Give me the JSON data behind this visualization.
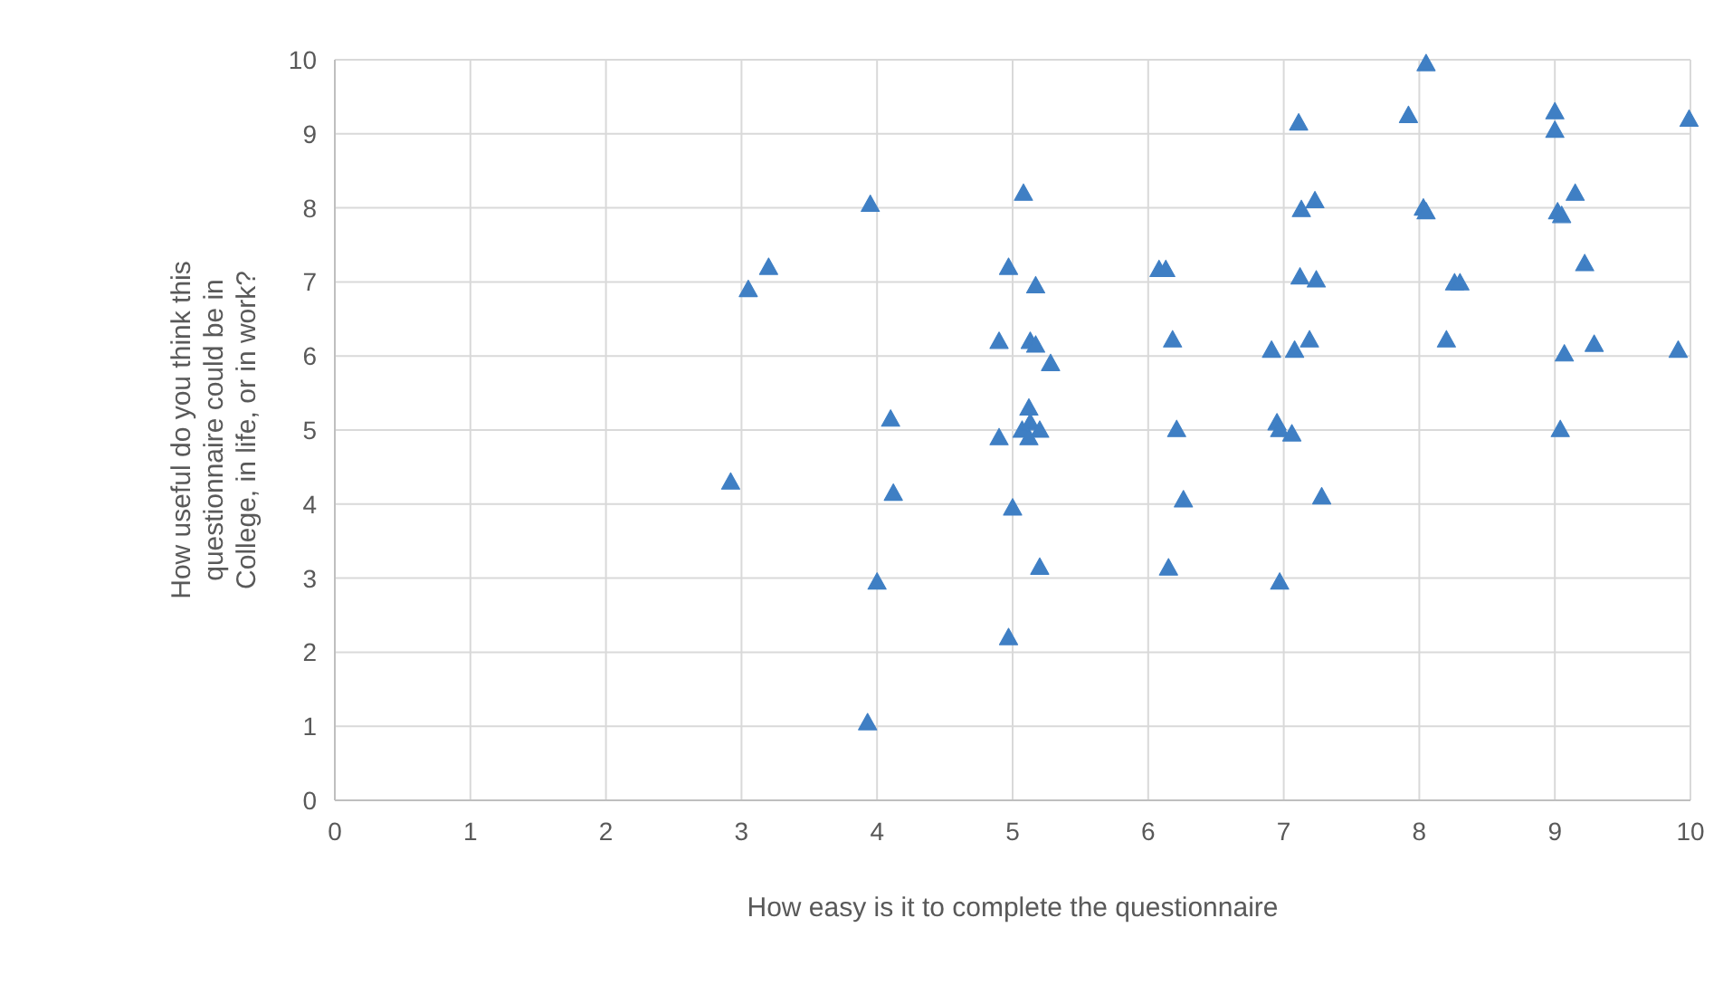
{
  "chart_data": {
    "type": "scatter",
    "xlabel": "How easy is it to complete the questionnaire",
    "ylabel": "How useful do you think this questionnaire could be in College, in life, or in work?",
    "xlim": [
      0,
      10
    ],
    "ylim": [
      0,
      10
    ],
    "xticks": [
      0,
      1,
      2,
      3,
      4,
      5,
      6,
      7,
      8,
      9,
      10
    ],
    "yticks": [
      0,
      1,
      2,
      3,
      4,
      5,
      6,
      7,
      8,
      9,
      10
    ],
    "grid": true,
    "marker": "triangle",
    "series": [
      {
        "color": "#3f7fc4",
        "x": [
          2.92,
          3.05,
          3.2,
          3.95,
          4.0,
          4.1,
          4.12,
          3.93,
          5.08,
          4.97,
          5.17,
          4.9,
          5.13,
          5.17,
          5.28,
          5.12,
          4.9,
          5.07,
          5.13,
          5.2,
          5.12,
          5.0,
          5.2,
          4.97,
          8.05,
          7.11,
          7.92,
          9.0,
          9.0,
          9.99,
          9.15,
          7.13,
          7.23,
          8.03,
          8.05,
          9.02,
          9.05,
          9.22,
          6.08,
          6.13,
          7.12,
          7.24,
          8.26,
          8.3,
          6.18,
          6.91,
          7.08,
          7.19,
          8.2,
          9.07,
          9.29,
          9.91,
          6.21,
          6.95,
          6.97,
          7.06,
          9.04,
          6.26,
          7.28,
          6.15,
          6.97
        ],
        "values": [
          4.3,
          6.9,
          7.2,
          8.05,
          2.95,
          5.15,
          4.15,
          1.05,
          8.2,
          7.2,
          6.95,
          6.2,
          6.2,
          6.15,
          5.9,
          5.3,
          4.9,
          5.0,
          5.1,
          5.0,
          4.9,
          3.95,
          3.15,
          2.2,
          9.95,
          9.15,
          9.25,
          9.3,
          9.05,
          9.2,
          8.2,
          7.98,
          8.1,
          8.0,
          7.95,
          7.95,
          7.9,
          7.25,
          7.17,
          7.17,
          7.07,
          7.03,
          6.99,
          6.99,
          6.22,
          6.08,
          6.08,
          6.22,
          6.22,
          6.03,
          6.16,
          6.08,
          5.01,
          5.1,
          5.01,
          4.95,
          5.01,
          4.06,
          4.1,
          3.14,
          2.95
        ]
      }
    ]
  }
}
